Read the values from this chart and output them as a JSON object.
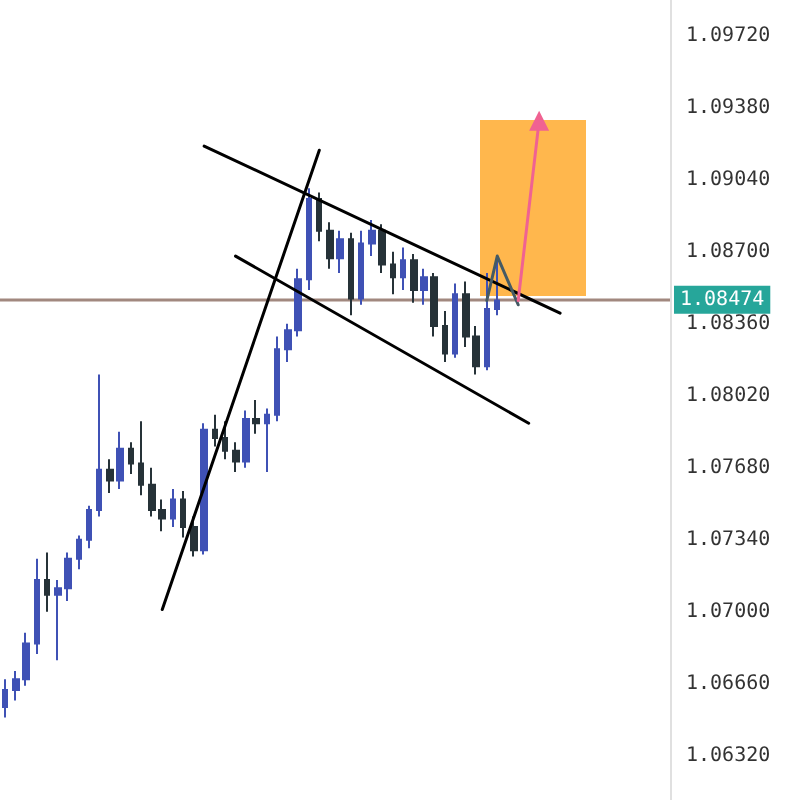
{
  "chart_data": {
    "type": "candlestick",
    "categories": [
      null,
      null,
      null,
      null,
      null,
      null,
      null,
      null,
      null,
      null,
      null,
      null,
      null,
      null,
      null,
      null,
      null,
      null,
      null,
      null,
      null,
      null,
      null,
      null,
      null,
      null,
      null,
      null,
      null,
      null,
      null,
      null,
      null,
      null,
      null,
      null,
      null,
      null,
      null,
      null,
      null,
      null,
      null,
      null,
      null,
      null,
      null,
      null,
      null,
      null,
      null,
      null,
      null,
      null,
      null,
      null,
      null,
      null,
      null,
      null,
      null,
      null,
      null,
      null
    ],
    "ohlc": [
      [
        1.0655,
        1.0668,
        1.065,
        1.0663
      ],
      [
        1.0663,
        1.0672,
        1.0658,
        1.0668
      ],
      [
        1.0668,
        1.069,
        1.0665,
        1.0685
      ],
      [
        1.0685,
        1.0725,
        1.068,
        1.0715
      ],
      [
        1.0715,
        1.0728,
        1.07,
        1.0708
      ],
      [
        1.0708,
        1.0715,
        1.0677,
        1.0711
      ],
      [
        1.0711,
        1.0728,
        1.0705,
        1.0725
      ],
      [
        1.0725,
        1.0736,
        1.072,
        1.0734
      ],
      [
        1.0734,
        1.075,
        1.073,
        1.0748
      ],
      [
        1.0748,
        1.0812,
        1.0745,
        1.0767
      ],
      [
        1.0767,
        1.0772,
        1.0756,
        1.0762
      ],
      [
        1.0762,
        1.0785,
        1.0758,
        1.0777
      ],
      [
        1.0777,
        1.078,
        1.0765,
        1.077
      ],
      [
        1.077,
        1.079,
        1.0755,
        1.076
      ],
      [
        1.076,
        1.0768,
        1.0745,
        1.0748
      ],
      [
        1.0748,
        1.0753,
        1.0738,
        1.0744
      ],
      [
        1.0744,
        1.0758,
        1.074,
        1.0753
      ],
      [
        1.0753,
        1.0757,
        1.0735,
        1.074
      ],
      [
        1.074,
        1.0745,
        1.0726,
        1.0729
      ],
      [
        1.0729,
        1.0789,
        1.0727,
        1.0786
      ],
      [
        1.0786,
        1.0793,
        1.0778,
        1.0782
      ],
      [
        1.0782,
        1.079,
        1.0772,
        1.0776
      ],
      [
        1.0776,
        1.078,
        1.0766,
        1.0771
      ],
      [
        1.0771,
        1.0795,
        1.0768,
        1.0791
      ],
      [
        1.0791,
        1.08,
        1.0784,
        1.0789
      ],
      [
        1.0789,
        1.0796,
        1.0766,
        1.0793
      ],
      [
        1.0793,
        1.083,
        1.079,
        1.0824
      ],
      [
        1.0824,
        1.0836,
        1.0818,
        1.0833
      ],
      [
        1.0833,
        1.0862,
        1.083,
        1.0857
      ],
      [
        1.0857,
        1.09,
        1.0852,
        1.0895
      ],
      [
        1.0895,
        1.0898,
        1.0875,
        1.088
      ],
      [
        1.088,
        1.0884,
        1.0862,
        1.0867
      ],
      [
        1.0867,
        1.088,
        1.086,
        1.0876
      ],
      [
        1.0876,
        1.0879,
        1.084,
        1.0848
      ],
      [
        1.0848,
        1.088,
        1.0845,
        1.0874
      ],
      [
        1.0874,
        1.0885,
        1.0868,
        1.088
      ],
      [
        1.088,
        1.0883,
        1.086,
        1.0864
      ],
      [
        1.0864,
        1.087,
        1.085,
        1.0858
      ],
      [
        1.0858,
        1.0872,
        1.0852,
        1.0866
      ],
      [
        1.0866,
        1.0869,
        1.0846,
        1.0852
      ],
      [
        1.0852,
        1.0862,
        1.0845,
        1.0858
      ],
      [
        1.0858,
        1.086,
        1.083,
        1.0835
      ],
      [
        1.0835,
        1.0842,
        1.0818,
        1.0822
      ],
      [
        1.0822,
        1.0855,
        1.082,
        1.085
      ],
      [
        1.085,
        1.0856,
        1.0825,
        1.083
      ],
      [
        1.083,
        1.0835,
        1.0812,
        1.0816
      ],
      [
        1.0816,
        1.086,
        1.0814,
        1.0843
      ],
      [
        1.0843,
        1.0868,
        1.084,
        1.0847
      ],
      null,
      null,
      null,
      null,
      null,
      null,
      null,
      null,
      null,
      null,
      null,
      null,
      null,
      null,
      null,
      null
    ],
    "series": [
      {
        "type": "line",
        "color": "#000000",
        "values": [
          null,
          null,
          null,
          null,
          null,
          null,
          null,
          null,
          null,
          null,
          null,
          null,
          null,
          null,
          null,
          1.0701,
          null,
          null,
          null,
          null,
          null,
          null,
          null,
          null,
          null,
          null,
          null,
          null,
          null,
          null,
          1.0918,
          null,
          null,
          null,
          null,
          null,
          null,
          null,
          null,
          null,
          null,
          null,
          null,
          null,
          null,
          null,
          null,
          null,
          null,
          null,
          null,
          null,
          null,
          null,
          null,
          null,
          null,
          null,
          null,
          null,
          null,
          null,
          null,
          null
        ]
      },
      {
        "type": "line",
        "color": "#000000",
        "values": [
          null,
          null,
          null,
          null,
          null,
          null,
          null,
          null,
          null,
          null,
          null,
          null,
          null,
          null,
          null,
          null,
          null,
          null,
          null,
          1.092,
          null,
          null,
          null,
          null,
          null,
          null,
          null,
          null,
          null,
          null,
          null,
          null,
          null,
          null,
          null,
          null,
          null,
          null,
          null,
          null,
          null,
          null,
          null,
          null,
          null,
          null,
          null,
          null,
          null,
          null,
          null,
          null,
          null,
          1.0841,
          null,
          null,
          null,
          null,
          null,
          null,
          null,
          null,
          null,
          null
        ]
      },
      {
        "type": "line",
        "color": "#000000",
        "values": [
          null,
          null,
          null,
          null,
          null,
          null,
          null,
          null,
          null,
          null,
          null,
          null,
          null,
          null,
          null,
          null,
          null,
          null,
          null,
          null,
          null,
          null,
          1.0868,
          null,
          null,
          null,
          null,
          null,
          null,
          null,
          null,
          null,
          null,
          null,
          null,
          null,
          null,
          null,
          null,
          null,
          null,
          null,
          null,
          null,
          null,
          null,
          null,
          null,
          null,
          null,
          1.0789,
          null,
          null,
          null,
          null,
          null,
          null,
          null,
          null,
          null,
          null,
          null,
          null,
          null
        ]
      },
      {
        "type": "line",
        "color": "#455a64",
        "values": [
          null,
          null,
          null,
          null,
          null,
          null,
          null,
          null,
          null,
          null,
          null,
          null,
          null,
          null,
          null,
          null,
          null,
          null,
          null,
          null,
          null,
          null,
          null,
          null,
          null,
          null,
          null,
          null,
          null,
          null,
          null,
          null,
          null,
          null,
          null,
          null,
          null,
          null,
          null,
          null,
          null,
          null,
          null,
          null,
          null,
          null,
          1.0847,
          1.0868,
          null,
          1.0845,
          null,
          null,
          null,
          null,
          null,
          null,
          null,
          null,
          null,
          null,
          null,
          null,
          null,
          null
        ]
      },
      {
        "type": "line",
        "color": "#f06292",
        "marker": "triangle",
        "values": [
          null,
          null,
          null,
          null,
          null,
          null,
          null,
          null,
          null,
          null,
          null,
          null,
          null,
          null,
          null,
          null,
          null,
          null,
          null,
          null,
          null,
          null,
          null,
          null,
          null,
          null,
          null,
          null,
          null,
          null,
          null,
          null,
          null,
          null,
          null,
          null,
          null,
          null,
          null,
          null,
          null,
          null,
          null,
          null,
          null,
          null,
          null,
          null,
          null,
          1.0847,
          null,
          1.0932,
          null,
          null,
          null,
          null,
          null,
          null,
          null,
          null,
          null,
          null,
          null,
          null
        ]
      }
    ],
    "ref_lines": [
      {
        "axis": "y",
        "value": 1.08474,
        "label": "1.08474",
        "color": "#a1887f"
      }
    ],
    "ylim": [
      1.0611,
      1.0989
    ],
    "yticks": [
      {
        "value": 1.0632,
        "label": "1.06320"
      },
      {
        "value": 1.0666,
        "label": "1.06660"
      },
      {
        "value": 1.07,
        "label": "1.07000"
      },
      {
        "value": 1.0734,
        "label": "1.07340"
      },
      {
        "value": 1.0768,
        "label": "1.07680"
      },
      {
        "value": 1.0802,
        "label": "1.08020"
      },
      {
        "value": 1.0836,
        "label": "1.08360"
      },
      {
        "value": 1.087,
        "label": "1.08700"
      },
      {
        "value": 1.0904,
        "label": "1.09040"
      },
      {
        "value": 1.0938,
        "label": "1.09380"
      },
      {
        "value": 1.0972,
        "label": "1.09720"
      }
    ],
    "tick_labels": "y",
    "grid": false
  }
}
